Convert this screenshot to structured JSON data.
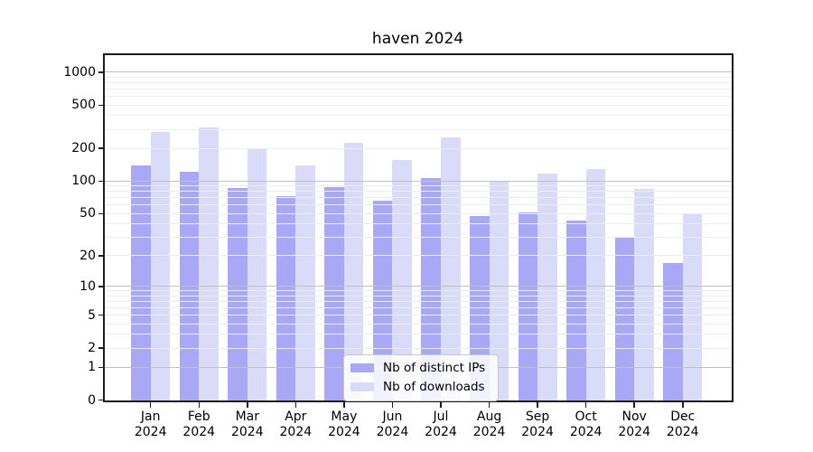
{
  "chart_data": {
    "type": "bar",
    "title": "haven 2024",
    "scale": "log1p",
    "grid": true,
    "legend_position": "inside lower-center",
    "categories": [
      "Jan",
      "Feb",
      "Mar",
      "Apr",
      "May",
      "Jun",
      "Jul",
      "Aug",
      "Sep",
      "Oct",
      "Nov",
      "Dec"
    ],
    "x_year_label": "2024",
    "series": [
      {
        "name": "Nb of distinct IPs",
        "color": "#a8a8f7",
        "values": [
          139,
          122,
          86,
          72,
          88,
          66,
          107,
          47,
          51,
          43,
          30,
          17
        ]
      },
      {
        "name": "Nb of downloads",
        "color": "#dadaf9",
        "values": [
          283,
          314,
          202,
          139,
          227,
          158,
          254,
          100,
          118,
          130,
          85,
          50
        ]
      }
    ],
    "yticks": [
      1000,
      500,
      200,
      100,
      50,
      20,
      10,
      5,
      2,
      1,
      0
    ],
    "ylim": [
      0,
      1460
    ]
  },
  "colors": {
    "background": "#ffffff",
    "axis": "#1c1c1c",
    "grid_major": "#c0c0c6",
    "grid_minor": "#ebebf0",
    "text": "#000000",
    "legend_border": "#c9c9c9"
  }
}
